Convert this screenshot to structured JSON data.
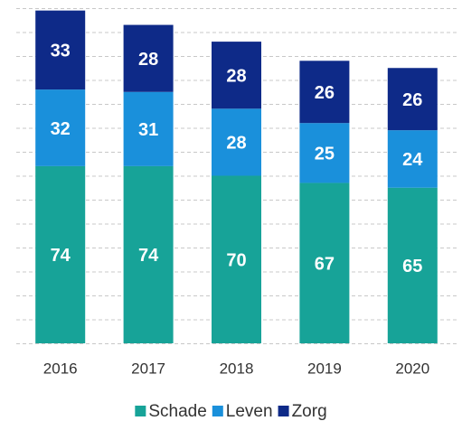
{
  "chart_data": {
    "type": "stacked_bar",
    "categories": [
      "2016",
      "2017",
      "2018",
      "2019",
      "2020"
    ],
    "series": [
      {
        "name": "Schade",
        "color": "#17a398",
        "values": [
          74,
          74,
          70,
          67,
          65
        ]
      },
      {
        "name": "Leven",
        "color": "#1a90db",
        "values": [
          32,
          31,
          28,
          25,
          24
        ]
      },
      {
        "name": "Zorg",
        "color": "#0e2a88",
        "values": [
          33,
          28,
          28,
          26,
          26
        ]
      }
    ],
    "ylim": [
      0,
      140
    ],
    "yticks": [
      0,
      10,
      20,
      30,
      40,
      50,
      60,
      70,
      80,
      90,
      100,
      110,
      120,
      130,
      140
    ],
    "grid": true,
    "legend": "bottom"
  }
}
